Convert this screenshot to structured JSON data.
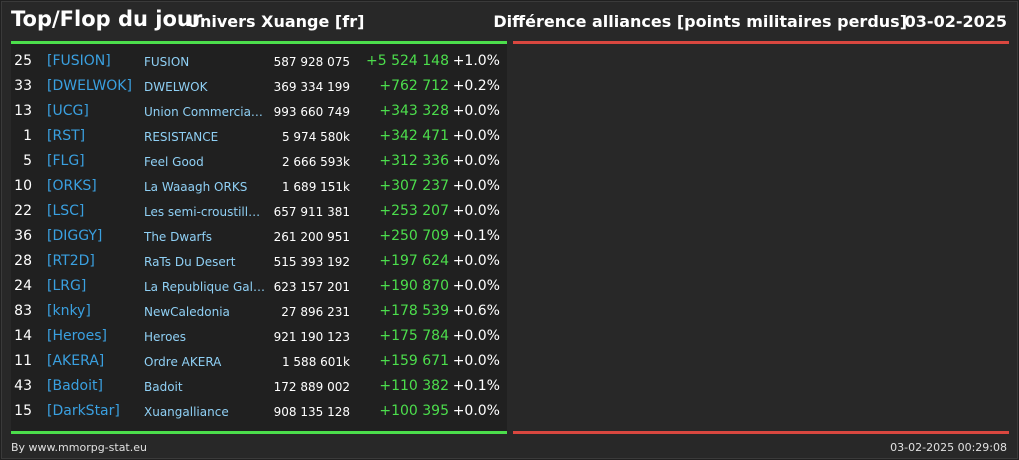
{
  "header": {
    "title": "Top/Flop du jour",
    "universe": "Univers Xuange [fr]",
    "diff_label": "Différence alliances [points militaires perdus]",
    "date": "03-02-2025"
  },
  "rows": [
    {
      "rank": "25",
      "tag": "[FUSION]",
      "name": "FUSION",
      "points": "587 928 075",
      "gain": "+5 524 148",
      "pct": "+1.0%"
    },
    {
      "rank": "33",
      "tag": "[DWELWOK]",
      "name": "DWELWOK",
      "points": "369 334 199",
      "gain": "+762 712",
      "pct": "+0.2%"
    },
    {
      "rank": "13",
      "tag": "[UCG]",
      "name": "Union Commerciale...",
      "points": "993 660 749",
      "gain": "+343 328",
      "pct": "+0.0%"
    },
    {
      "rank": "1",
      "tag": "[RST]",
      "name": "RESISTANCE",
      "points": "5 974 580k",
      "gain": "+342 471",
      "pct": "+0.0%"
    },
    {
      "rank": "5",
      "tag": "[FLG]",
      "name": "Feel Good",
      "points": "2 666 593k",
      "gain": "+312 336",
      "pct": "+0.0%"
    },
    {
      "rank": "10",
      "tag": "[ORKS]",
      "name": "La Waaagh ORKS",
      "points": "1 689 151k",
      "gain": "+307 237",
      "pct": "+0.0%"
    },
    {
      "rank": "22",
      "tag": "[LSC]",
      "name": "Les semi-croustilla...",
      "points": "657 911 381",
      "gain": "+253 207",
      "pct": "+0.0%"
    },
    {
      "rank": "36",
      "tag": "[DIGGY]",
      "name": "The Dwarfs",
      "points": "261 200 951",
      "gain": "+250 709",
      "pct": "+0.1%"
    },
    {
      "rank": "28",
      "tag": "[RT2D]",
      "name": "RaTs Du Desert",
      "points": "515 393 192",
      "gain": "+197 624",
      "pct": "+0.0%"
    },
    {
      "rank": "24",
      "tag": "[LRG]",
      "name": "La Republique Gala...",
      "points": "623 157 201",
      "gain": "+190 870",
      "pct": "+0.0%"
    },
    {
      "rank": "83",
      "tag": "[knky]",
      "name": "NewCaledonia",
      "points": "27 896 231",
      "gain": "+178 539",
      "pct": "+0.6%"
    },
    {
      "rank": "14",
      "tag": "[Heroes]",
      "name": "Heroes",
      "points": "921 190 123",
      "gain": "+175 784",
      "pct": "+0.0%"
    },
    {
      "rank": "11",
      "tag": "[AKERA]",
      "name": "Ordre AKERA",
      "points": "1 588 601k",
      "gain": "+159 671",
      "pct": "+0.0%"
    },
    {
      "rank": "43",
      "tag": "[Badoit]",
      "name": "Badoit",
      "points": "172 889 002",
      "gain": "+110 382",
      "pct": "+0.1%"
    },
    {
      "rank": "15",
      "tag": "[DarkStar]",
      "name": "Xuangalliance",
      "points": "908 135 128",
      "gain": "+100 395",
      "pct": "+0.0%"
    }
  ],
  "footer": {
    "credit": "By www.mmorpg-stat.eu",
    "timestamp": "03-02-2025 00:29:08"
  },
  "colors": {
    "top_accent": "#4cde4c",
    "flop_accent": "#d9473f",
    "tag": "#3aa0e0",
    "name": "#8fd0f5"
  }
}
